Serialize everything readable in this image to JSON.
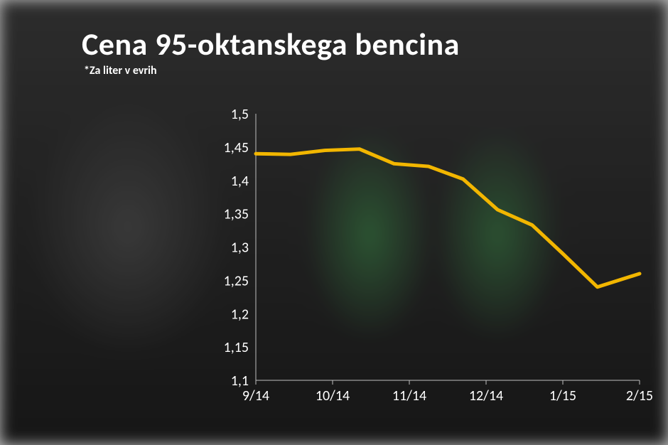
{
  "title": "Cena 95-oktanskega bencina",
  "subtitle": "*Za liter v evrih",
  "chart": {
    "type": "line",
    "background": "transparent",
    "axis_color": "#bfbfbf",
    "label_color": "#ffffff",
    "label_fontsize": 20,
    "line_color": "#f2b600",
    "line_width": 5,
    "ylim": [
      1.1,
      1.5
    ],
    "ytick_step": 0.05,
    "yticks": [
      "1,5",
      "1,45",
      "1,4",
      "1,35",
      "1,3",
      "1,25",
      "1,2",
      "1,15",
      "1,1"
    ],
    "xticks": [
      "9/14",
      "10/14",
      "11/14",
      "12/14",
      "1/15",
      "2/15"
    ],
    "points": [
      {
        "x": 0.0,
        "y": 1.44
      },
      {
        "x": 0.09,
        "y": 1.439
      },
      {
        "x": 0.18,
        "y": 1.445
      },
      {
        "x": 0.27,
        "y": 1.447
      },
      {
        "x": 0.36,
        "y": 1.425
      },
      {
        "x": 0.45,
        "y": 1.421
      },
      {
        "x": 0.54,
        "y": 1.402
      },
      {
        "x": 0.63,
        "y": 1.356
      },
      {
        "x": 0.72,
        "y": 1.333
      },
      {
        "x": 0.8,
        "y": 1.29
      },
      {
        "x": 0.89,
        "y": 1.24
      },
      {
        "x": 1.0,
        "y": 1.26
      }
    ]
  }
}
